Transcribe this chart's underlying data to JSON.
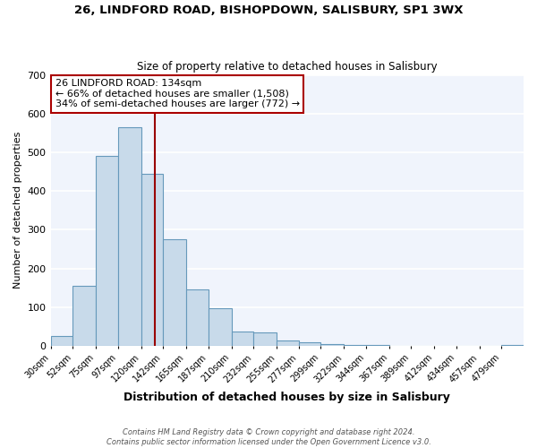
{
  "title1": "26, LINDFORD ROAD, BISHOPDOWN, SALISBURY, SP1 3WX",
  "title2": "Size of property relative to detached houses in Salisbury",
  "xlabel": "Distribution of detached houses by size in Salisbury",
  "ylabel": "Number of detached properties",
  "bin_labels": [
    "30sqm",
    "52sqm",
    "75sqm",
    "97sqm",
    "120sqm",
    "142sqm",
    "165sqm",
    "187sqm",
    "210sqm",
    "232sqm",
    "255sqm",
    "277sqm",
    "299sqm",
    "322sqm",
    "344sqm",
    "367sqm",
    "389sqm",
    "412sqm",
    "434sqm",
    "457sqm",
    "479sqm"
  ],
  "bin_edges": [
    30,
    52,
    75,
    97,
    120,
    142,
    165,
    187,
    210,
    232,
    255,
    277,
    299,
    322,
    344,
    367,
    389,
    412,
    434,
    457,
    479,
    501
  ],
  "bar_heights": [
    25,
    155,
    490,
    565,
    445,
    275,
    145,
    98,
    37,
    35,
    14,
    9,
    5,
    3,
    2,
    0,
    0,
    0,
    0,
    0,
    2
  ],
  "bar_color": "#c8daea",
  "bar_edge_color": "#6699bb",
  "vline_x": 134,
  "vline_color": "#990000",
  "ylim": [
    0,
    700
  ],
  "yticks": [
    0,
    100,
    200,
    300,
    400,
    500,
    600,
    700
  ],
  "annotation_title": "26 LINDFORD ROAD: 134sqm",
  "annotation_line1": "← 66% of detached houses are smaller (1,508)",
  "annotation_line2": "34% of semi-detached houses are larger (772) →",
  "annotation_box_color": "#ffffff",
  "annotation_box_edge": "#aa0000",
  "footer1": "Contains HM Land Registry data © Crown copyright and database right 2024.",
  "footer2": "Contains public sector information licensed under the Open Government Licence v3.0.",
  "bg_color": "#ffffff",
  "plot_bg_color": "#f0f4fc",
  "grid_color": "#ffffff"
}
